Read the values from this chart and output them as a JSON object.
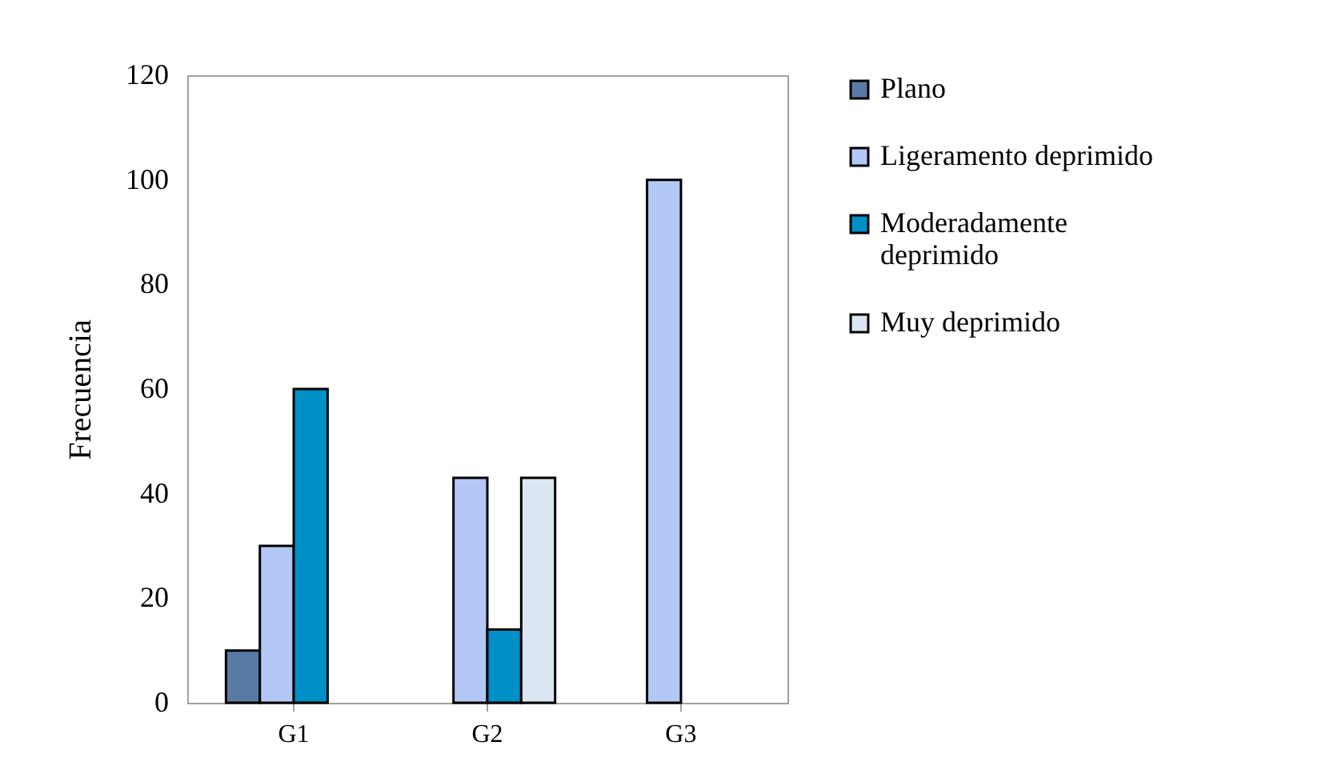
{
  "chart_data": {
    "type": "bar",
    "ylabel": "Frecuencia",
    "categories": [
      "G1",
      "G2",
      "G3"
    ],
    "series": [
      {
        "name": "Plano",
        "color": "#5a7aa6",
        "values": [
          10,
          null,
          null
        ]
      },
      {
        "name": "Ligeramento deprimido",
        "color": "#b4c8f5",
        "values": [
          30,
          43,
          100
        ]
      },
      {
        "name": "Moderadamente deprimido",
        "color": "#0090c8",
        "values": [
          60,
          14,
          null
        ]
      },
      {
        "name": "Muy deprimido",
        "color": "#dce6f2",
        "values": [
          null,
          43,
          null
        ]
      }
    ],
    "ylim": [
      0,
      120
    ],
    "yticks": [
      0,
      20,
      40,
      60,
      80,
      100,
      120
    ],
    "grid": false,
    "legend": "right"
  }
}
